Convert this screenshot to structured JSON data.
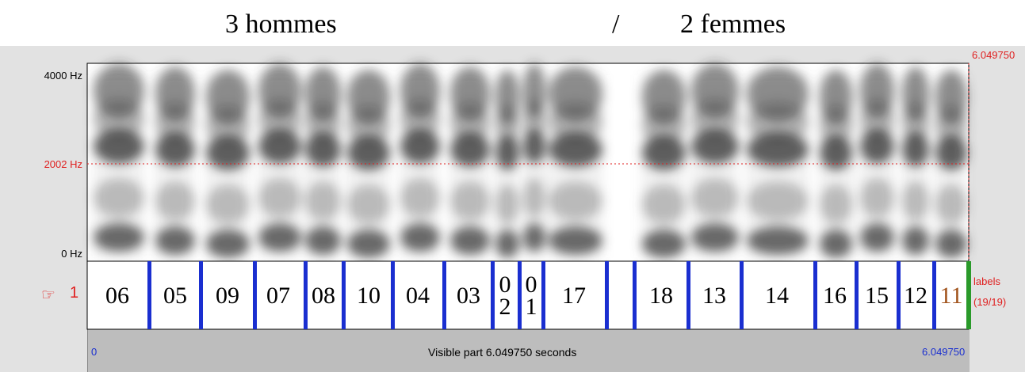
{
  "header": {
    "left": "3 hommes",
    "slash": "/",
    "right": "2 femmes"
  },
  "window": {
    "end_time": "6.049750",
    "freq_top": "4000 Hz",
    "freq_cursor": "2002 Hz",
    "freq_bottom": "0 Hz"
  },
  "tier": {
    "pointer": "☞",
    "number": "1",
    "name": "labels",
    "count": "(19/19)",
    "intervals": [
      "06",
      "05",
      "09",
      "07",
      "08",
      "10",
      "04",
      "03",
      "0\n2",
      "0\n1",
      "17",
      "18",
      "13",
      "14",
      "16",
      "15",
      "12",
      "11"
    ]
  },
  "footer": {
    "start": "0",
    "caption": "Visible part 6.049750 seconds",
    "end": "6.049750"
  }
}
